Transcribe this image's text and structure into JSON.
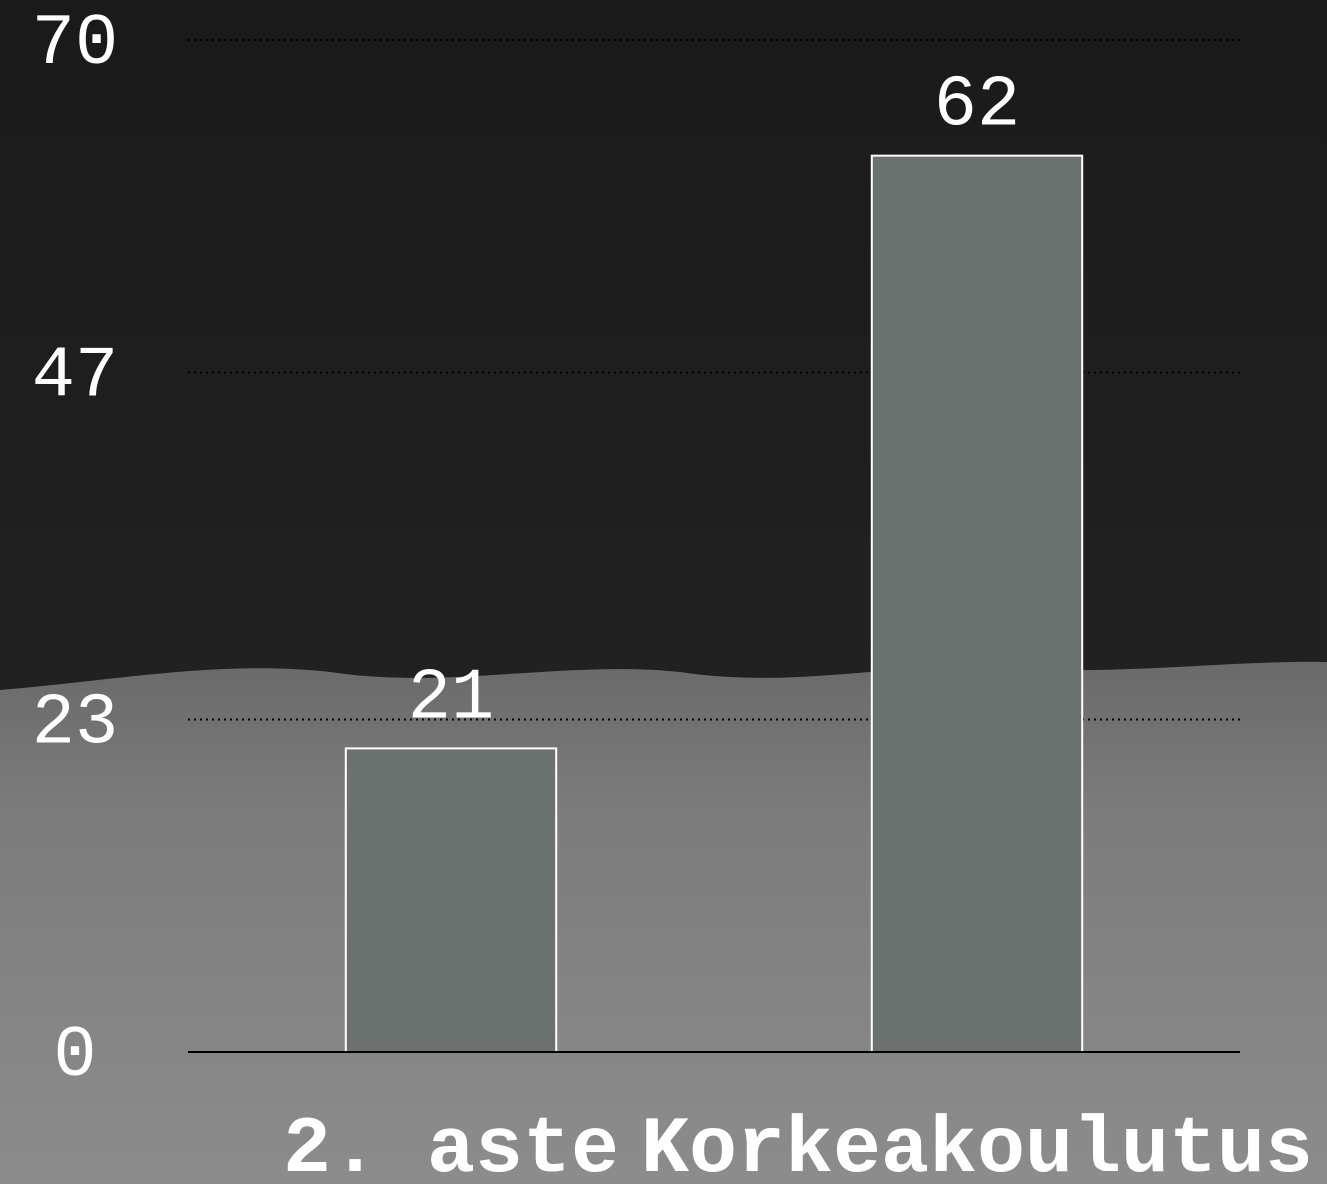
{
  "chart_data": {
    "type": "bar",
    "categories": [
      "2. aste",
      "Korkeakoulutus"
    ],
    "values": [
      21,
      62
    ],
    "color": "#6b716e",
    "ylim": [
      0,
      70
    ],
    "yticks": [
      0,
      23,
      47,
      70
    ],
    "grid": true
  }
}
